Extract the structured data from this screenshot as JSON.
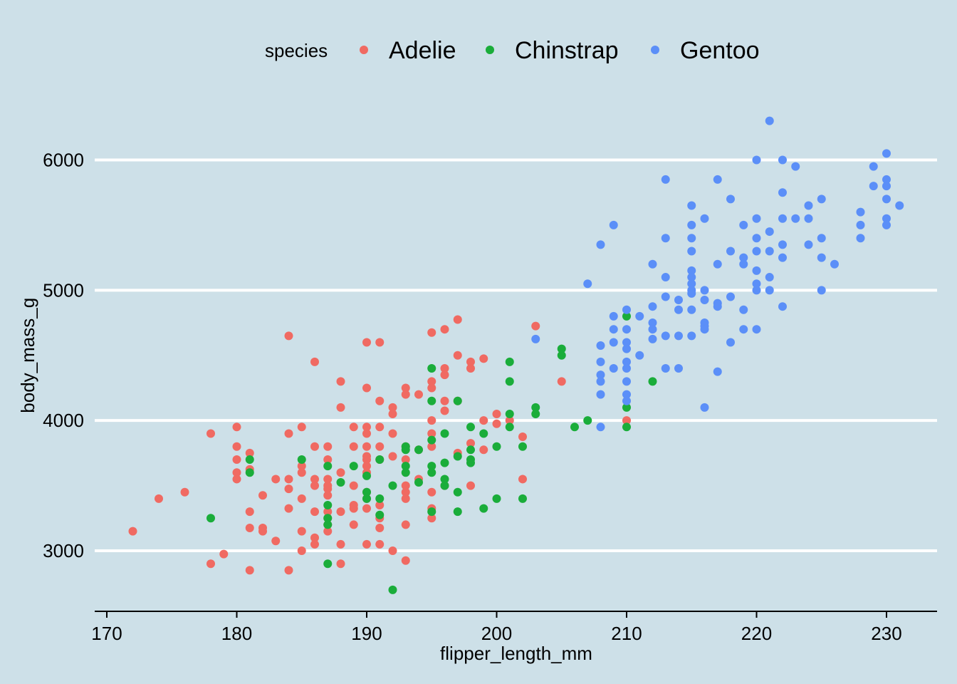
{
  "chart_data": {
    "type": "scatter",
    "xlabel": "flipper_length_mm",
    "ylabel": "body_mass_g",
    "xlim": [
      168,
      233
    ],
    "ylim": [
      2550,
      6400
    ],
    "x_ticks": [
      170,
      180,
      190,
      200,
      210,
      220,
      230
    ],
    "y_ticks": [
      3000,
      4000,
      5000,
      6000
    ],
    "grid": "horizontal",
    "legend_position": "top",
    "legend_title": "species",
    "series": [
      {
        "name": "Adelie",
        "color": "#f06a62",
        "points": [
          [
            172,
            3150
          ],
          [
            174,
            3400
          ],
          [
            176,
            3450
          ],
          [
            178,
            3900
          ],
          [
            178,
            2900
          ],
          [
            179,
            2975
          ],
          [
            180,
            3950
          ],
          [
            180,
            3800
          ],
          [
            180,
            3700
          ],
          [
            180,
            3600
          ],
          [
            180,
            3550
          ],
          [
            181,
            3750
          ],
          [
            181,
            3625
          ],
          [
            181,
            3300
          ],
          [
            181,
            3175
          ],
          [
            181,
            2850
          ],
          [
            182,
            3425
          ],
          [
            182,
            3175
          ],
          [
            182,
            3150
          ],
          [
            183,
            3550
          ],
          [
            183,
            3075
          ],
          [
            184,
            4650
          ],
          [
            184,
            3900
          ],
          [
            184,
            3550
          ],
          [
            184,
            3475
          ],
          [
            184,
            3325
          ],
          [
            184,
            2850
          ],
          [
            185,
            3950
          ],
          [
            185,
            3650
          ],
          [
            185,
            3600
          ],
          [
            185,
            3400
          ],
          [
            185,
            3150
          ],
          [
            185,
            3000
          ],
          [
            186,
            4450
          ],
          [
            186,
            3800
          ],
          [
            186,
            3550
          ],
          [
            186,
            3500
          ],
          [
            186,
            3300
          ],
          [
            186,
            3100
          ],
          [
            186,
            3050
          ],
          [
            187,
            3800
          ],
          [
            187,
            3700
          ],
          [
            187,
            3550
          ],
          [
            187,
            3500
          ],
          [
            187,
            3475
          ],
          [
            187,
            3425
          ],
          [
            187,
            3300
          ],
          [
            187,
            3250
          ],
          [
            187,
            3200
          ],
          [
            187,
            3150
          ],
          [
            188,
            4300
          ],
          [
            188,
            4100
          ],
          [
            188,
            3600
          ],
          [
            188,
            3300
          ],
          [
            188,
            3050
          ],
          [
            188,
            2900
          ],
          [
            189,
            3950
          ],
          [
            189,
            3800
          ],
          [
            189,
            3500
          ],
          [
            189,
            3350
          ],
          [
            189,
            3325
          ],
          [
            189,
            3200
          ],
          [
            190,
            4600
          ],
          [
            190,
            4250
          ],
          [
            190,
            3950
          ],
          [
            190,
            3900
          ],
          [
            190,
            3800
          ],
          [
            190,
            3725
          ],
          [
            190,
            3700
          ],
          [
            190,
            3650
          ],
          [
            190,
            3600
          ],
          [
            190,
            3450
          ],
          [
            190,
            3400
          ],
          [
            190,
            3325
          ],
          [
            190,
            3050
          ],
          [
            191,
            4600
          ],
          [
            191,
            4150
          ],
          [
            191,
            3950
          ],
          [
            191,
            3800
          ],
          [
            191,
            3700
          ],
          [
            191,
            3350
          ],
          [
            191,
            3250
          ],
          [
            191,
            3175
          ],
          [
            191,
            3050
          ],
          [
            192,
            4100
          ],
          [
            192,
            4050
          ],
          [
            192,
            3900
          ],
          [
            192,
            3725
          ],
          [
            192,
            3000
          ],
          [
            193,
            4250
          ],
          [
            193,
            4200
          ],
          [
            193,
            3800
          ],
          [
            193,
            3700
          ],
          [
            193,
            3500
          ],
          [
            193,
            3450
          ],
          [
            193,
            3400
          ],
          [
            193,
            3200
          ],
          [
            193,
            2925
          ],
          [
            194,
            4200
          ],
          [
            194,
            3775
          ],
          [
            194,
            3550
          ],
          [
            195,
            4675
          ],
          [
            195,
            4300
          ],
          [
            195,
            4250
          ],
          [
            195,
            4000
          ],
          [
            195,
            3900
          ],
          [
            195,
            3800
          ],
          [
            195,
            3450
          ],
          [
            195,
            3325
          ],
          [
            195,
            3250
          ],
          [
            196,
            4700
          ],
          [
            196,
            4400
          ],
          [
            196,
            4350
          ],
          [
            196,
            4150
          ],
          [
            196,
            4075
          ],
          [
            196,
            3500
          ],
          [
            197,
            4775
          ],
          [
            197,
            4500
          ],
          [
            197,
            4150
          ],
          [
            197,
            3750
          ],
          [
            198,
            4450
          ],
          [
            198,
            4400
          ],
          [
            198,
            3825
          ],
          [
            198,
            3500
          ],
          [
            199,
            4475
          ],
          [
            199,
            4000
          ],
          [
            199,
            3775
          ],
          [
            200,
            4050
          ],
          [
            200,
            3975
          ],
          [
            201,
            4000
          ],
          [
            202,
            3875
          ],
          [
            202,
            3550
          ],
          [
            203,
            4725
          ],
          [
            205,
            4300
          ],
          [
            210,
            4000
          ]
        ]
      },
      {
        "name": "Chinstrap",
        "color": "#1aad3a",
        "points": [
          [
            178,
            3250
          ],
          [
            181,
            3700
          ],
          [
            181,
            3600
          ],
          [
            185,
            3700
          ],
          [
            187,
            3650
          ],
          [
            187,
            3350
          ],
          [
            187,
            3250
          ],
          [
            187,
            3200
          ],
          [
            187,
            2900
          ],
          [
            188,
            3525
          ],
          [
            189,
            3650
          ],
          [
            190,
            3575
          ],
          [
            190,
            3450
          ],
          [
            190,
            3400
          ],
          [
            191,
            3700
          ],
          [
            191,
            3400
          ],
          [
            191,
            3275
          ],
          [
            192,
            3500
          ],
          [
            192,
            2700
          ],
          [
            193,
            3800
          ],
          [
            193,
            3775
          ],
          [
            193,
            3650
          ],
          [
            193,
            3600
          ],
          [
            194,
            3775
          ],
          [
            194,
            3525
          ],
          [
            195,
            4400
          ],
          [
            195,
            4150
          ],
          [
            195,
            3850
          ],
          [
            195,
            3650
          ],
          [
            195,
            3600
          ],
          [
            195,
            3300
          ],
          [
            196,
            3900
          ],
          [
            196,
            3675
          ],
          [
            196,
            3550
          ],
          [
            196,
            3500
          ],
          [
            197,
            4150
          ],
          [
            197,
            3725
          ],
          [
            197,
            3450
          ],
          [
            197,
            3300
          ],
          [
            198,
            3950
          ],
          [
            198,
            3775
          ],
          [
            198,
            3700
          ],
          [
            198,
            3675
          ],
          [
            199,
            3900
          ],
          [
            199,
            3325
          ],
          [
            200,
            3800
          ],
          [
            200,
            3400
          ],
          [
            201,
            4450
          ],
          [
            201,
            4300
          ],
          [
            201,
            4050
          ],
          [
            201,
            3950
          ],
          [
            202,
            3800
          ],
          [
            202,
            3400
          ],
          [
            203,
            4100
          ],
          [
            203,
            4050
          ],
          [
            205,
            4550
          ],
          [
            205,
            4500
          ],
          [
            206,
            3950
          ],
          [
            207,
            4000
          ],
          [
            210,
            4800
          ],
          [
            210,
            4100
          ],
          [
            210,
            3950
          ],
          [
            212,
            4300
          ]
        ]
      },
      {
        "name": "Gentoo",
        "color": "#5b8ff8",
        "points": [
          [
            203,
            4625
          ],
          [
            207,
            5050
          ],
          [
            208,
            5350
          ],
          [
            208,
            4575
          ],
          [
            208,
            4450
          ],
          [
            208,
            4350
          ],
          [
            208,
            4300
          ],
          [
            208,
            4200
          ],
          [
            208,
            3950
          ],
          [
            209,
            5500
          ],
          [
            209,
            4800
          ],
          [
            209,
            4700
          ],
          [
            209,
            4600
          ],
          [
            209,
            4400
          ],
          [
            210,
            4850
          ],
          [
            210,
            4700
          ],
          [
            210,
            4600
          ],
          [
            210,
            4550
          ],
          [
            210,
            4450
          ],
          [
            210,
            4400
          ],
          [
            210,
            4300
          ],
          [
            210,
            4200
          ],
          [
            210,
            4150
          ],
          [
            211,
            4800
          ],
          [
            211,
            4500
          ],
          [
            212,
            5200
          ],
          [
            212,
            4875
          ],
          [
            212,
            4750
          ],
          [
            212,
            4700
          ],
          [
            212,
            4625
          ],
          [
            213,
            5850
          ],
          [
            213,
            5400
          ],
          [
            213,
            5100
          ],
          [
            213,
            4950
          ],
          [
            213,
            4650
          ],
          [
            213,
            4400
          ],
          [
            214,
            4925
          ],
          [
            214,
            4850
          ],
          [
            214,
            4650
          ],
          [
            214,
            4400
          ],
          [
            215,
            5650
          ],
          [
            215,
            5500
          ],
          [
            215,
            5400
          ],
          [
            215,
            5300
          ],
          [
            215,
            5150
          ],
          [
            215,
            5100
          ],
          [
            215,
            5050
          ],
          [
            215,
            5000
          ],
          [
            215,
            4975
          ],
          [
            215,
            4850
          ],
          [
            215,
            4650
          ],
          [
            216,
            5550
          ],
          [
            216,
            5000
          ],
          [
            216,
            4925
          ],
          [
            216,
            4750
          ],
          [
            216,
            4725
          ],
          [
            216,
            4700
          ],
          [
            216,
            4100
          ],
          [
            217,
            5850
          ],
          [
            217,
            5200
          ],
          [
            217,
            4900
          ],
          [
            217,
            4875
          ],
          [
            217,
            4375
          ],
          [
            218,
            5700
          ],
          [
            218,
            5300
          ],
          [
            218,
            4950
          ],
          [
            218,
            4600
          ],
          [
            219,
            5500
          ],
          [
            219,
            5250
          ],
          [
            219,
            5200
          ],
          [
            219,
            4850
          ],
          [
            219,
            4700
          ],
          [
            220,
            6000
          ],
          [
            220,
            5550
          ],
          [
            220,
            5400
          ],
          [
            220,
            5300
          ],
          [
            220,
            5150
          ],
          [
            220,
            5050
          ],
          [
            220,
            5000
          ],
          [
            220,
            4700
          ],
          [
            221,
            6300
          ],
          [
            221,
            5450
          ],
          [
            221,
            5300
          ],
          [
            221,
            5100
          ],
          [
            221,
            5000
          ],
          [
            222,
            6000
          ],
          [
            222,
            5750
          ],
          [
            222,
            5550
          ],
          [
            222,
            5350
          ],
          [
            222,
            5250
          ],
          [
            222,
            4875
          ],
          [
            223,
            5950
          ],
          [
            223,
            5550
          ],
          [
            224,
            5650
          ],
          [
            224,
            5550
          ],
          [
            224,
            5350
          ],
          [
            225,
            5700
          ],
          [
            225,
            5400
          ],
          [
            225,
            5250
          ],
          [
            225,
            5000
          ],
          [
            226,
            5200
          ],
          [
            228,
            5600
          ],
          [
            228,
            5500
          ],
          [
            228,
            5400
          ],
          [
            229,
            5950
          ],
          [
            229,
            5800
          ],
          [
            230,
            6050
          ],
          [
            230,
            5850
          ],
          [
            230,
            5800
          ],
          [
            230,
            5700
          ],
          [
            230,
            5550
          ],
          [
            230,
            5500
          ],
          [
            231,
            5650
          ]
        ]
      }
    ]
  }
}
